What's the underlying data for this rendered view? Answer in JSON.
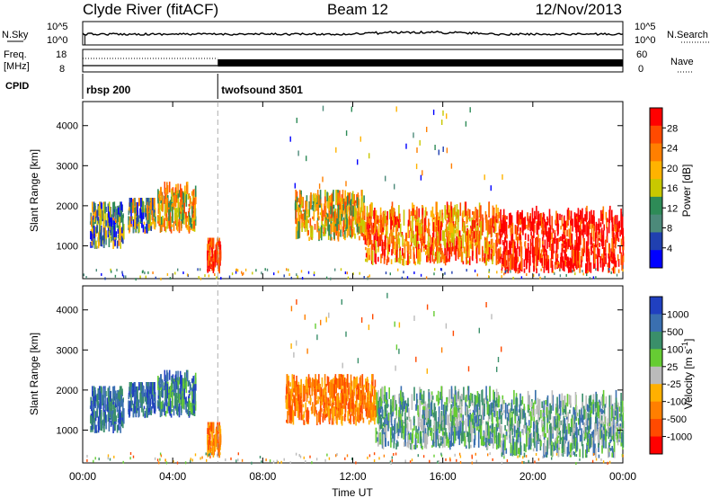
{
  "header": {
    "station": "Clyde River (fitACF)",
    "beam": "Beam 12",
    "date": "12/Nov/2013"
  },
  "panels": {
    "nsky_label": "N.Sky",
    "nsky_ticks": [
      "10^5",
      "10^0"
    ],
    "nsearch_label": "N.Search",
    "nsearch_ticks": [
      "10^5",
      "10^0"
    ],
    "freq_label": "Freq.",
    "freq_unit": "[MHz]",
    "freq_ticks": [
      "18",
      "8"
    ],
    "nave_label": "Nave",
    "nave_ticks": [
      "60",
      "0"
    ],
    "cpid_label": "CPID",
    "cpid_segments": [
      {
        "name": "rbsp 200",
        "start_hour": 0,
        "end_hour": 6
      },
      {
        "name": "twofsound 3501",
        "start_hour": 6,
        "end_hour": 24
      }
    ]
  },
  "colorbars": {
    "power": {
      "label": "Power [dB]",
      "ticks": [
        "28",
        "24",
        "20",
        "16",
        "12",
        "8",
        "4"
      ],
      "colors": [
        "#ff0000",
        "#ff4a00",
        "#ff7f00",
        "#ffb300",
        "#c8c800",
        "#2e8b57",
        "#4c8a7a",
        "#2040b0",
        "#0000ff"
      ]
    },
    "velocity": {
      "label": "Velocity [m s",
      "label_sup": "-1",
      "label_end": "]",
      "ticks": [
        "1000",
        "500",
        "100",
        "25",
        "-25",
        "-100",
        "-500",
        "-1000"
      ],
      "colors": [
        "#2040c0",
        "#3a6fb0",
        "#3a8f6a",
        "#66cc33",
        "#bbbbbb",
        "#ffb000",
        "#ff7f00",
        "#ff4a00",
        "#ff0000"
      ]
    }
  },
  "axes": {
    "ylabel": "Slant Range [km]",
    "xlabel": "Time UT",
    "x_ticks": [
      "00:00",
      "04:00",
      "08:00",
      "12:00",
      "16:00",
      "20:00",
      "00:00"
    ],
    "y_ticks": [
      "1000",
      "2000",
      "3000",
      "4000"
    ]
  },
  "chart_data": [
    {
      "type": "heatmap",
      "name": "Power",
      "xlabel": "Time UT",
      "ylabel": "Slant Range [km]",
      "xlim_hours": [
        0,
        24
      ],
      "ylim": [
        180,
        4600
      ],
      "colorbar_label": "Power [dB]",
      "colorbar_ticks": [
        4,
        8,
        12,
        16,
        20,
        24,
        28
      ],
      "scatter_regions": [
        {
          "t_start": 0.3,
          "t_end": 1.8,
          "r_min": 900,
          "r_max": 2100,
          "dominant": "mixed 8-20"
        },
        {
          "t_start": 2.0,
          "t_end": 3.2,
          "r_min": 1300,
          "r_max": 2200,
          "dominant": "mixed 8-20"
        },
        {
          "t_start": 3.3,
          "t_end": 5.0,
          "r_min": 1300,
          "r_max": 2600,
          "dominant": "mixed 12-24"
        },
        {
          "t_start": 5.5,
          "t_end": 6.1,
          "r_min": 300,
          "r_max": 1200,
          "dominant": "20-28"
        },
        {
          "t_start": 9.4,
          "t_end": 12.5,
          "r_min": 1100,
          "r_max": 2400,
          "dominant": "12-24"
        },
        {
          "t_start": 12.5,
          "t_end": 18.5,
          "r_min": 500,
          "r_max": 2100,
          "dominant": "16-28"
        },
        {
          "t_start": 18.5,
          "t_end": 24.0,
          "r_min": 300,
          "r_max": 2000,
          "dominant": "24-28"
        }
      ]
    },
    {
      "type": "heatmap",
      "name": "Velocity",
      "xlabel": "Time UT",
      "ylabel": "Slant Range [km]",
      "xlim_hours": [
        0,
        24
      ],
      "ylim": [
        180,
        4600
      ],
      "colorbar_label": "Velocity [m s-1]",
      "colorbar_ticks": [
        -1000,
        -500,
        -100,
        -25,
        25,
        100,
        500,
        1000
      ],
      "scatter_regions": [
        {
          "t_start": 0.3,
          "t_end": 1.8,
          "r_min": 900,
          "r_max": 2100,
          "dominant": "500 to 1000"
        },
        {
          "t_start": 2.0,
          "t_end": 3.2,
          "r_min": 1300,
          "r_max": 2200,
          "dominant": "500 to 1000"
        },
        {
          "t_start": 3.3,
          "t_end": 5.0,
          "r_min": 1300,
          "r_max": 2500,
          "dominant": "100 to 1000"
        },
        {
          "t_start": 5.5,
          "t_end": 6.1,
          "r_min": 300,
          "r_max": 1200,
          "dominant": "-500 to -100"
        },
        {
          "t_start": 9.0,
          "t_end": 13.0,
          "r_min": 1100,
          "r_max": 2400,
          "dominant": "-500 to -100"
        },
        {
          "t_start": 13.0,
          "t_end": 18.5,
          "r_min": 500,
          "r_max": 2100,
          "dominant": "100 to 500"
        },
        {
          "t_start": 18.5,
          "t_end": 24.0,
          "r_min": 300,
          "r_max": 2000,
          "dominant": "-100 to 500"
        }
      ]
    }
  ]
}
